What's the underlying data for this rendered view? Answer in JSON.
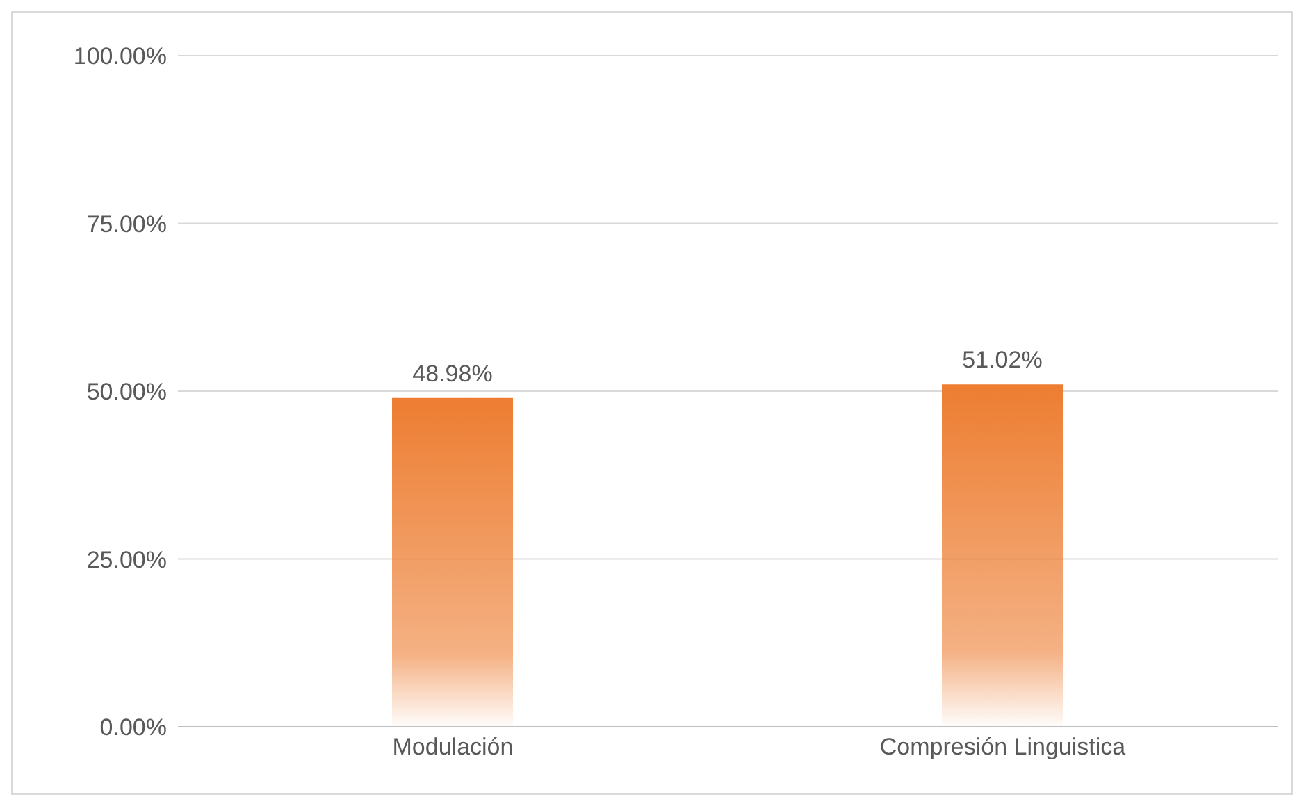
{
  "chart_data": {
    "type": "bar",
    "categories": [
      "Modulación",
      "Compresión Linguistica"
    ],
    "values": [
      48.98,
      51.02
    ],
    "value_labels": [
      "48.98%",
      "51.02%"
    ],
    "color": "#ed7d31",
    "ylim": [
      0,
      100
    ],
    "yticks": [
      {
        "value": 0,
        "label": "0.00%"
      },
      {
        "value": 25,
        "label": "25.00%"
      },
      {
        "value": 50,
        "label": "50.00%"
      },
      {
        "value": 75,
        "label": "75.00%"
      },
      {
        "value": 100,
        "label": "100.00%"
      }
    ],
    "grid": "y"
  }
}
